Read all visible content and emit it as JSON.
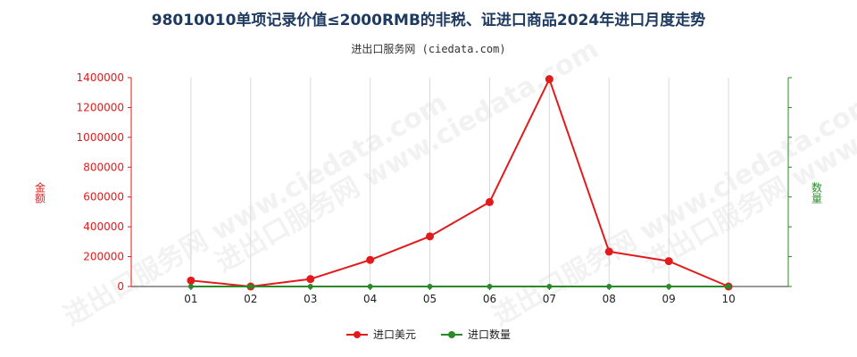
{
  "title": "98010010单项记录价值≤2000RMB的非税、证进口商品2024年进口月度走势",
  "subtitle": "进出口服务网 (ciedata.com)",
  "watermark": "进出口服务网 www.ciedata.com",
  "colors": {
    "series1": "#e31a1c",
    "series2": "#2a8a2a",
    "title": "#1f3a60"
  },
  "chart_data": {
    "type": "line",
    "categories": [
      "01",
      "02",
      "03",
      "04",
      "05",
      "06",
      "07",
      "08",
      "09",
      "10"
    ],
    "ylabel_left": "金额",
    "ylabel_right": "数量",
    "ylim": [
      0,
      1400000
    ],
    "yticks": [
      0,
      200000,
      400000,
      600000,
      800000,
      1000000,
      1200000,
      1400000
    ],
    "grid": "vertical",
    "legend_placement": "bottom-center",
    "series": [
      {
        "name": "进口美元",
        "axis": "left",
        "values": [
          40000,
          0,
          50000,
          178000,
          336000,
          566000,
          1390000,
          234000,
          170000,
          0
        ]
      },
      {
        "name": "进口数量",
        "axis": "right",
        "values": [
          0,
          0,
          0,
          0,
          0,
          0,
          0,
          0,
          0,
          0
        ]
      }
    ]
  }
}
